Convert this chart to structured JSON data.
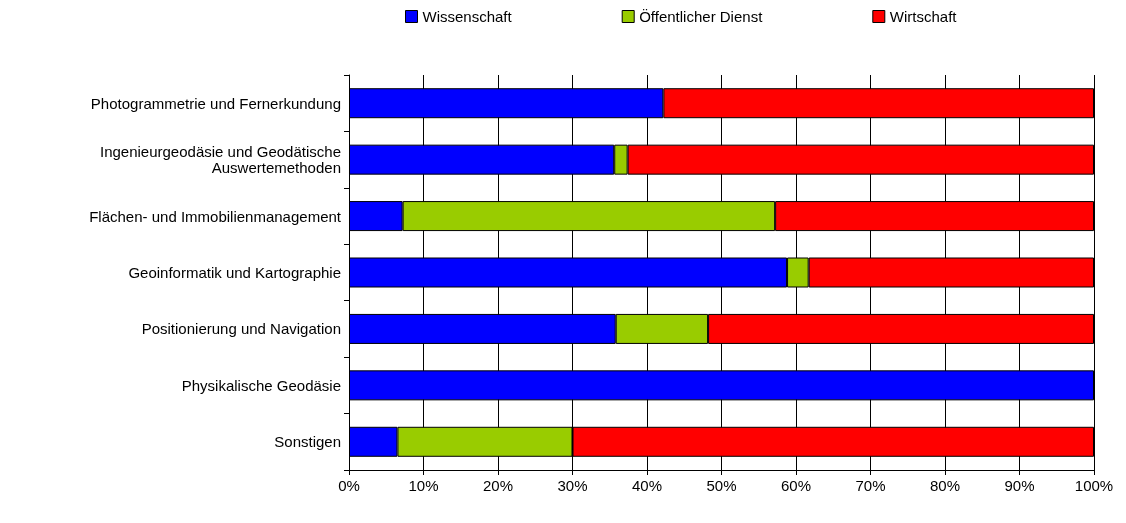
{
  "chart_data": {
    "type": "bar",
    "orientation": "horizontal",
    "stacked": true,
    "categories": [
      "Photogrammetrie und Fernerkundung",
      "Ingenieurgeodäsie und Geodätische\nAuswertemethoden",
      "Flächen- und Immobilienmanagement",
      "Geoinformatik und Kartographie",
      "Positionierung und Navigation",
      "Physikalische Geodäsie",
      "Sonstigen"
    ],
    "series": [
      {
        "name": "Wissenschaft",
        "color": "#0000ff",
        "values": [
          42.2,
          35.6,
          7.2,
          58.8,
          35.8,
          100,
          6.5
        ]
      },
      {
        "name": "Öffentlicher Dienst",
        "color": "#99cc00",
        "values": [
          0,
          1.8,
          50.0,
          2.9,
          12.4,
          0,
          23.5
        ]
      },
      {
        "name": "Wirtschaft",
        "color": "#ff0000",
        "values": [
          57.8,
          62.6,
          42.8,
          38.3,
          51.8,
          0,
          70.0
        ]
      }
    ],
    "xlim": [
      0,
      100
    ],
    "xticks": [
      {
        "value": 0,
        "label": "0%"
      },
      {
        "value": 10,
        "label": "10%"
      },
      {
        "value": 20,
        "label": "20%"
      },
      {
        "value": 30,
        "label": "30%"
      },
      {
        "value": 40,
        "label": "40%"
      },
      {
        "value": 50,
        "label": "50%"
      },
      {
        "value": 60,
        "label": "60%"
      },
      {
        "value": 70,
        "label": "70%"
      },
      {
        "value": 80,
        "label": "80%"
      },
      {
        "value": 90,
        "label": "90%"
      },
      {
        "value": 100,
        "label": "100%"
      }
    ],
    "grid": "x",
    "legend": "top"
  }
}
